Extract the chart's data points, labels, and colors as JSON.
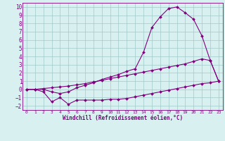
{
  "x": [
    0,
    1,
    2,
    3,
    4,
    5,
    6,
    7,
    8,
    9,
    10,
    11,
    12,
    13,
    14,
    15,
    16,
    17,
    18,
    19,
    20,
    21,
    22,
    23
  ],
  "curve_upper": [
    0,
    0,
    0,
    -0.3,
    -0.5,
    -0.3,
    0.2,
    0.5,
    0.8,
    1.2,
    1.5,
    1.8,
    2.2,
    2.5,
    4.5,
    7.5,
    8.8,
    9.8,
    10.0,
    9.3,
    8.5,
    6.5,
    3.5,
    1.0
  ],
  "curve_mid": [
    0,
    0,
    0.1,
    0.2,
    0.3,
    0.4,
    0.55,
    0.7,
    0.9,
    1.1,
    1.3,
    1.5,
    1.7,
    1.9,
    2.1,
    2.3,
    2.5,
    2.7,
    2.9,
    3.1,
    3.4,
    3.7,
    3.5,
    1.0
  ],
  "curve_low": [
    0,
    0,
    -0.3,
    -1.5,
    -1.0,
    -1.8,
    -1.3,
    -1.3,
    -1.3,
    -1.3,
    -1.2,
    -1.2,
    -1.1,
    -0.9,
    -0.7,
    -0.5,
    -0.3,
    -0.1,
    0.1,
    0.3,
    0.5,
    0.7,
    0.8,
    1.0
  ],
  "line_color": "#800080",
  "bg_color": "#d8f0f0",
  "grid_color": "#a0c8c8",
  "xlabel": "Windchill (Refroidissement éolien,°C)",
  "xlim": [
    -0.5,
    23.5
  ],
  "ylim": [
    -2.5,
    10.5
  ],
  "yticks": [
    -2,
    -1,
    0,
    1,
    2,
    3,
    4,
    5,
    6,
    7,
    8,
    9,
    10
  ],
  "xticks": [
    0,
    1,
    2,
    3,
    4,
    5,
    6,
    7,
    8,
    9,
    10,
    11,
    12,
    13,
    14,
    15,
    16,
    17,
    18,
    19,
    20,
    21,
    22,
    23
  ]
}
